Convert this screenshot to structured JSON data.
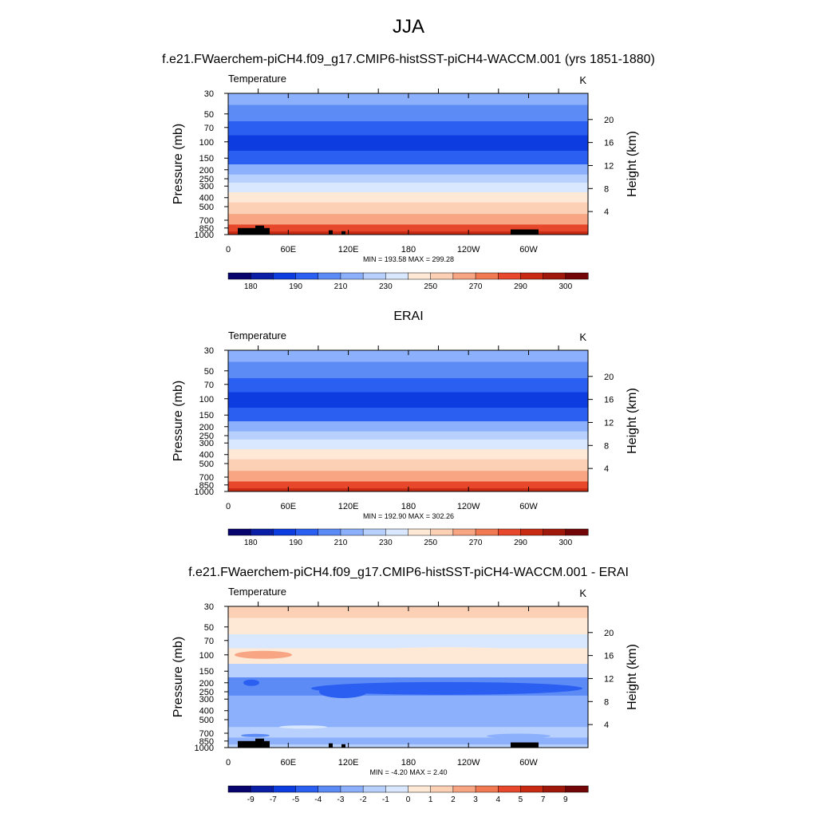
{
  "page_title": "JJA",
  "chart_data": [
    {
      "type": "heatmap",
      "panel_title": "f.e21.FWaerchem-piCH4.f09_g17.CMIP6-histSST-piCH4-WACCM.001 (yrs 1851-1880)",
      "variable": "Temperature",
      "units": "K",
      "ylabel": "Pressure (mb)",
      "ylabel_right": "Height (km)",
      "x_ticks": [
        "0",
        "60E",
        "120E",
        "180",
        "120W",
        "60W"
      ],
      "y_ticks": [
        "30",
        "50",
        "70",
        "100",
        "150",
        "200",
        "250",
        "300",
        "400",
        "500",
        "700",
        "850",
        "1000"
      ],
      "height_ticks": [
        "20",
        "16",
        "12",
        "8",
        "4"
      ],
      "stats": "MIN = 193.58  MAX = 299.28",
      "min": 193.58,
      "max": 299.28,
      "colorbar_labels": [
        "180",
        "190",
        "210",
        "230",
        "250",
        "270",
        "290",
        "300"
      ],
      "colorbar_colors": [
        "#08046e",
        "#0b1fa6",
        "#0d3ce0",
        "#2a5ff2",
        "#5c8bf6",
        "#8cb0fb",
        "#b7d0fd",
        "#d9e8fe",
        "#fde9d6",
        "#fcd0b5",
        "#f7a582",
        "#f17a52",
        "#e7482b",
        "#c92a14",
        "#a0170b",
        "#720606"
      ],
      "layers": [
        {
          "level": "30",
          "color": "#8cb0fb"
        },
        {
          "level": "50",
          "color": "#5c8bf6"
        },
        {
          "level": "70",
          "color": "#2a5ff2"
        },
        {
          "level": "100",
          "color": "#0d3ce0"
        },
        {
          "level": "150",
          "color": "#2a5ff2"
        },
        {
          "level": "200",
          "color": "#8cb0fb"
        },
        {
          "level": "250",
          "color": "#b7d0fd"
        },
        {
          "level": "300",
          "color": "#d9e8fe"
        },
        {
          "level": "400",
          "color": "#fde9d6"
        },
        {
          "level": "500",
          "color": "#fcd0b5"
        },
        {
          "level": "700",
          "color": "#f7a582"
        },
        {
          "level": "850",
          "color": "#e7482b"
        },
        {
          "level": "1000",
          "color": "#c92a14"
        }
      ],
      "terrain": true
    },
    {
      "type": "heatmap",
      "panel_title": "ERAI",
      "variable": "Temperature",
      "units": "K",
      "ylabel": "Pressure (mb)",
      "ylabel_right": "Height (km)",
      "x_ticks": [
        "0",
        "60E",
        "120E",
        "180",
        "120W",
        "60W"
      ],
      "y_ticks": [
        "30",
        "50",
        "70",
        "100",
        "150",
        "200",
        "250",
        "300",
        "400",
        "500",
        "700",
        "850",
        "1000"
      ],
      "height_ticks": [
        "20",
        "16",
        "12",
        "8",
        "4"
      ],
      "stats": "MIN = 192.90  MAX = 302.26",
      "min": 192.9,
      "max": 302.26,
      "colorbar_labels": [
        "180",
        "190",
        "210",
        "230",
        "250",
        "270",
        "290",
        "300"
      ],
      "colorbar_colors": [
        "#08046e",
        "#0b1fa6",
        "#0d3ce0",
        "#2a5ff2",
        "#5c8bf6",
        "#8cb0fb",
        "#b7d0fd",
        "#d9e8fe",
        "#fde9d6",
        "#fcd0b5",
        "#f7a582",
        "#f17a52",
        "#e7482b",
        "#c92a14",
        "#a0170b",
        "#720606"
      ],
      "layers": [
        {
          "level": "30",
          "color": "#8cb0fb"
        },
        {
          "level": "50",
          "color": "#5c8bf6"
        },
        {
          "level": "70",
          "color": "#2a5ff2"
        },
        {
          "level": "100",
          "color": "#0d3ce0"
        },
        {
          "level": "150",
          "color": "#2a5ff2"
        },
        {
          "level": "200",
          "color": "#8cb0fb"
        },
        {
          "level": "250",
          "color": "#b7d0fd"
        },
        {
          "level": "300",
          "color": "#d9e8fe"
        },
        {
          "level": "400",
          "color": "#fde9d6"
        },
        {
          "level": "500",
          "color": "#fcd0b5"
        },
        {
          "level": "700",
          "color": "#f7a582"
        },
        {
          "level": "850",
          "color": "#e7482b"
        },
        {
          "level": "1000",
          "color": "#c92a14"
        }
      ],
      "terrain": false
    },
    {
      "type": "heatmap",
      "panel_title": "f.e21.FWaerchem-piCH4.f09_g17.CMIP6-histSST-piCH4-WACCM.001 - ERAI",
      "variable": "Temperature",
      "units": "K",
      "ylabel": "Pressure (mb)",
      "ylabel_right": "Height (km)",
      "x_ticks": [
        "0",
        "60E",
        "120E",
        "180",
        "120W",
        "60W"
      ],
      "y_ticks": [
        "30",
        "50",
        "70",
        "100",
        "150",
        "200",
        "250",
        "300",
        "400",
        "500",
        "700",
        "850",
        "1000"
      ],
      "height_ticks": [
        "20",
        "16",
        "12",
        "8",
        "4"
      ],
      "stats": "MIN =  -4.20  MAX =   2.40",
      "min": -4.2,
      "max": 2.4,
      "colorbar_labels": [
        "-9",
        "-7",
        "-5",
        "-4",
        "-3",
        "-2",
        "-1",
        "0",
        "1",
        "2",
        "3",
        "4",
        "5",
        "7",
        "9"
      ],
      "colorbar_colors": [
        "#08046e",
        "#0b1fa6",
        "#0d3ce0",
        "#2a5ff2",
        "#5c8bf6",
        "#8cb0fb",
        "#b7d0fd",
        "#d9e8fe",
        "#fde9d6",
        "#fcd0b5",
        "#f7a582",
        "#f17a52",
        "#e7482b",
        "#c92a14",
        "#a0170b",
        "#720606"
      ],
      "layers": [
        {
          "level": "30",
          "color": "#fcd0b5"
        },
        {
          "level": "50",
          "color": "#fde9d6"
        },
        {
          "level": "70",
          "color": "#d9e8fe"
        },
        {
          "level": "100",
          "color": "#fde9d6"
        },
        {
          "level": "150",
          "color": "#b7d0fd"
        },
        {
          "level": "200",
          "color": "#5c8bf6"
        },
        {
          "level": "250",
          "color": "#5c8bf6"
        },
        {
          "level": "300",
          "color": "#8cb0fb"
        },
        {
          "level": "400",
          "color": "#8cb0fb"
        },
        {
          "level": "500",
          "color": "#8cb0fb"
        },
        {
          "level": "700",
          "color": "#b7d0fd"
        },
        {
          "level": "850",
          "color": "#8cb0fb"
        },
        {
          "level": "1000",
          "color": "#b7d0fd"
        }
      ],
      "terrain": true
    }
  ]
}
